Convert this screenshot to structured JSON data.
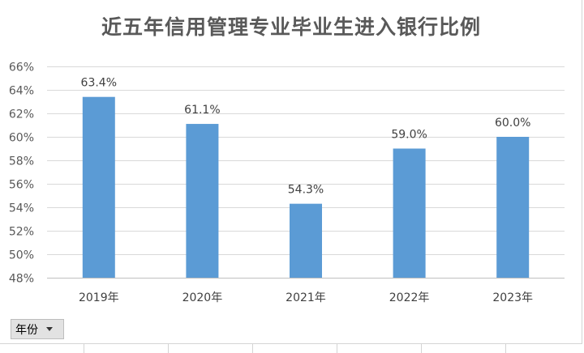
{
  "chart_data": {
    "type": "bar",
    "title": "近五年信用管理专业毕业生进入银行比例",
    "categories": [
      "2019年",
      "2020年",
      "2021年",
      "2022年",
      "2023年"
    ],
    "values": [
      63.4,
      61.1,
      54.3,
      59.0,
      60.0
    ],
    "data_labels": [
      "63.4%",
      "61.1%",
      "54.3%",
      "59.0%",
      "60.0%"
    ],
    "yticks": [
      48,
      50,
      52,
      54,
      56,
      58,
      60,
      62,
      64,
      66
    ],
    "ytick_labels": [
      "48%",
      "50%",
      "52%",
      "54%",
      "56%",
      "58%",
      "60%",
      "62%",
      "64%",
      "66%"
    ],
    "ylim": [
      48,
      66
    ],
    "xlabel": "",
    "ylabel": "",
    "grid": true,
    "legend": false,
    "bar_color": "#5b9bd5"
  },
  "filter": {
    "label": "年份"
  }
}
